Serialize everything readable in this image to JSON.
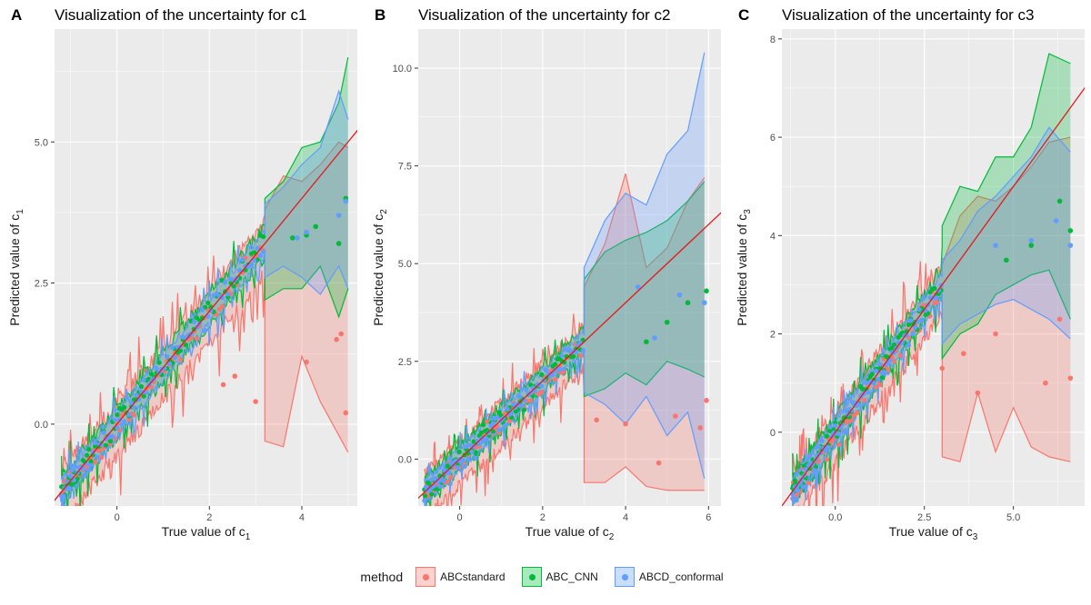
{
  "colors": {
    "ABCstandard": "#f8766d",
    "ABC_CNN": "#00ba38",
    "ABCD_conformal": "#619cff",
    "panel_bg": "#ebebeb",
    "grid": "#ffffff",
    "identity_line": "#e41a1c"
  },
  "legend": {
    "title": "method",
    "items": [
      {
        "key": "ABCstandard",
        "label": "ABCstandard"
      },
      {
        "key": "ABC_CNN",
        "label": "ABC_CNN"
      },
      {
        "key": "ABCD_conformal",
        "label": "ABCD_conformal"
      }
    ]
  },
  "chart_data": [
    {
      "tag": "A",
      "type": "scatter",
      "title": "Visualization of the uncertainty for c1",
      "xlabel": "True value of c",
      "ylabel": "Predicted value of c",
      "subscript": "1",
      "xlim": [
        -1.35,
        5.2
      ],
      "ylim": [
        -1.45,
        7.0
      ],
      "xticks": [
        0,
        2,
        4
      ],
      "xtick_labels": [
        "0",
        "2",
        "4"
      ],
      "yticks": [
        0,
        2.5,
        5
      ],
      "ytick_labels": [
        "0.0",
        "2.5",
        "5.0"
      ],
      "identity_line": true,
      "noise": 0.42,
      "x_extent": [
        -1.2,
        5.0
      ],
      "outliers": {
        "ABCstandard": [
          [
            2.3,
            0.7
          ],
          [
            2.55,
            0.85
          ],
          [
            3.0,
            0.4
          ],
          [
            4.1,
            1.1
          ],
          [
            4.75,
            1.5
          ],
          [
            4.85,
            1.6
          ],
          [
            4.95,
            0.2
          ]
        ],
        "ABC_CNN": [
          [
            3.8,
            3.3
          ],
          [
            4.1,
            3.35
          ],
          [
            4.3,
            3.5
          ],
          [
            4.8,
            3.2
          ],
          [
            4.95,
            4.0
          ]
        ],
        "ABCD_conformal": [
          [
            3.9,
            3.3
          ],
          [
            4.1,
            3.4
          ],
          [
            4.8,
            3.7
          ],
          [
            4.95,
            3.95
          ]
        ]
      },
      "bands": {
        "ABCstandard": {
          "x": [
            3.2,
            3.6,
            4.0,
            4.4,
            4.8,
            5.0
          ],
          "lo": [
            -0.3,
            -0.4,
            1.2,
            0.4,
            -0.2,
            -0.5
          ],
          "hi": [
            3.8,
            4.4,
            4.3,
            4.6,
            5.0,
            4.9
          ]
        },
        "ABC_CNN": {
          "x": [
            3.2,
            3.6,
            4.0,
            4.4,
            4.8,
            5.0
          ],
          "lo": [
            2.2,
            2.4,
            2.4,
            2.8,
            1.9,
            2.4
          ],
          "hi": [
            4.0,
            4.3,
            4.9,
            5.0,
            5.7,
            6.5
          ]
        },
        "ABCD_conformal": {
          "x": [
            3.2,
            3.6,
            4.0,
            4.4,
            4.8,
            5.0
          ],
          "lo": [
            2.6,
            2.8,
            2.6,
            2.3,
            2.8,
            2.4
          ],
          "hi": [
            3.9,
            4.2,
            4.6,
            4.9,
            5.9,
            5.4
          ]
        }
      }
    },
    {
      "tag": "B",
      "type": "scatter",
      "title": "Visualization of the uncertainty for c2",
      "xlabel": "True value of c",
      "ylabel": "Predicted value of c",
      "subscript": "2",
      "xlim": [
        -1.0,
        6.3
      ],
      "ylim": [
        -1.2,
        11.0
      ],
      "xticks": [
        0,
        2,
        4,
        6
      ],
      "xtick_labels": [
        "0",
        "2",
        "4",
        "6"
      ],
      "yticks": [
        0,
        2.5,
        5,
        7.5,
        10
      ],
      "ytick_labels": [
        "0.0",
        "2.5",
        "5.0",
        "7.5",
        "10.0"
      ],
      "identity_line": true,
      "noise": 0.5,
      "x_extent": [
        -0.85,
        5.9
      ],
      "outliers": {
        "ABCstandard": [
          [
            3.3,
            1.0
          ],
          [
            4.0,
            0.9
          ],
          [
            4.8,
            -0.1
          ],
          [
            5.2,
            1.1
          ],
          [
            5.8,
            0.8
          ],
          [
            5.95,
            1.5
          ]
        ],
        "ABC_CNN": [
          [
            4.5,
            3.0
          ],
          [
            5.0,
            3.5
          ],
          [
            5.5,
            4.0
          ],
          [
            5.95,
            4.3
          ]
        ],
        "ABCD_conformal": [
          [
            4.3,
            4.4
          ],
          [
            4.7,
            3.1
          ],
          [
            5.3,
            4.2
          ],
          [
            5.9,
            4.0
          ]
        ]
      },
      "bands": {
        "ABCstandard": {
          "x": [
            3.0,
            3.5,
            4.0,
            4.5,
            5.0,
            5.5,
            5.9
          ],
          "lo": [
            -0.6,
            -0.6,
            -0.2,
            -0.7,
            -0.8,
            -0.8,
            -0.8
          ],
          "hi": [
            4.4,
            5.5,
            7.3,
            4.9,
            5.4,
            6.6,
            7.2
          ]
        },
        "ABC_CNN": {
          "x": [
            3.0,
            3.5,
            4.0,
            4.5,
            5.0,
            5.5,
            5.9
          ],
          "lo": [
            1.6,
            1.8,
            2.2,
            1.9,
            2.5,
            2.3,
            2.1
          ],
          "hi": [
            4.6,
            5.3,
            5.6,
            5.8,
            6.1,
            6.6,
            7.1
          ]
        },
        "ABCD_conformal": {
          "x": [
            3.0,
            3.5,
            4.0,
            4.5,
            5.0,
            5.5,
            5.9
          ],
          "lo": [
            1.7,
            1.4,
            0.9,
            1.6,
            0.6,
            1.2,
            -0.5
          ],
          "hi": [
            4.9,
            6.1,
            6.8,
            6.5,
            7.8,
            8.4,
            10.4
          ]
        }
      }
    },
    {
      "tag": "C",
      "type": "scatter",
      "title": "Visualization of the uncertainty for c3",
      "xlabel": "True value of c",
      "ylabel": "Predicted value of c",
      "subscript": "3",
      "xlim": [
        -1.5,
        7.0
      ],
      "ylim": [
        -1.5,
        8.2
      ],
      "xticks": [
        0,
        2.5,
        5
      ],
      "xtick_labels": [
        "0.0",
        "2.5",
        "5.0"
      ],
      "yticks": [
        0,
        2,
        4,
        6,
        8
      ],
      "ytick_labels": [
        "0",
        "2",
        "4",
        "6",
        "8"
      ],
      "identity_line": true,
      "noise": 0.45,
      "x_extent": [
        -1.2,
        6.7
      ],
      "outliers": {
        "ABCstandard": [
          [
            3.0,
            1.3
          ],
          [
            3.6,
            1.6
          ],
          [
            4.0,
            0.8
          ],
          [
            4.5,
            2.0
          ],
          [
            5.9,
            1.0
          ],
          [
            6.6,
            1.1
          ],
          [
            6.3,
            2.3
          ]
        ],
        "ABC_CNN": [
          [
            4.8,
            3.5
          ],
          [
            5.5,
            3.8
          ],
          [
            6.3,
            4.7
          ],
          [
            6.6,
            4.1
          ]
        ],
        "ABCD_conformal": [
          [
            4.5,
            3.8
          ],
          [
            5.5,
            3.9
          ],
          [
            6.2,
            4.3
          ],
          [
            6.6,
            3.8
          ]
        ]
      },
      "bands": {
        "ABCstandard": {
          "x": [
            3.0,
            3.5,
            4.0,
            4.5,
            5.0,
            5.5,
            6.0,
            6.6
          ],
          "lo": [
            -0.5,
            -0.6,
            0.8,
            -0.4,
            0.5,
            -0.3,
            -0.5,
            -0.6
          ],
          "hi": [
            3.4,
            4.4,
            4.8,
            4.7,
            5.0,
            5.4,
            5.9,
            6.0
          ]
        },
        "ABC_CNN": {
          "x": [
            3.0,
            3.5,
            4.0,
            4.5,
            5.0,
            5.5,
            6.0,
            6.6
          ],
          "lo": [
            1.5,
            2.0,
            2.2,
            2.8,
            3.0,
            3.2,
            3.3,
            2.3
          ],
          "hi": [
            4.2,
            5.0,
            4.9,
            5.6,
            5.6,
            6.2,
            7.7,
            7.5
          ]
        },
        "ABCD_conformal": {
          "x": [
            3.0,
            3.5,
            4.0,
            4.5,
            5.0,
            5.5,
            6.0,
            6.6
          ],
          "lo": [
            1.8,
            2.2,
            2.4,
            2.6,
            2.7,
            2.5,
            2.3,
            1.9
          ],
          "hi": [
            3.5,
            3.9,
            4.5,
            4.8,
            5.2,
            5.6,
            6.2,
            5.7
          ]
        }
      }
    }
  ]
}
